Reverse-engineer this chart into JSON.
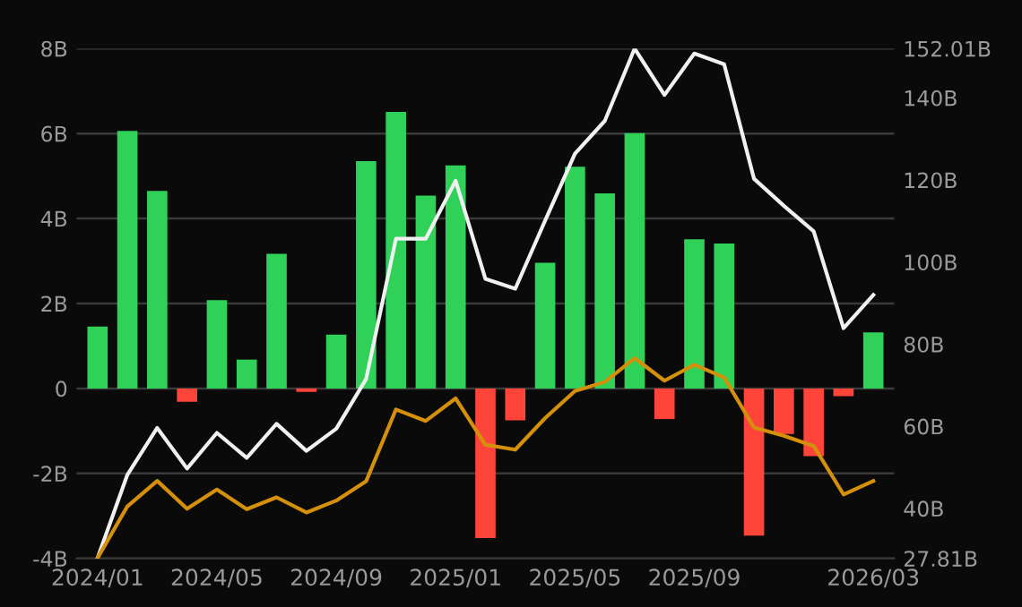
{
  "chart_data": {
    "type": "bar",
    "categories": [
      "2024/01",
      null,
      null,
      null,
      "2024/05",
      null,
      null,
      null,
      "2024/09",
      null,
      null,
      null,
      "2025/01",
      null,
      null,
      null,
      "2025/05",
      null,
      null,
      null,
      "2025/09",
      null,
      null,
      null,
      null,
      null,
      "2026/03"
    ],
    "series": [
      {
        "colors": [
          "#30d158",
          "#30d158",
          "#30d158",
          "#ff453a",
          "#30d158",
          "#30d158",
          "#30d158",
          "#ff453a",
          "#30d158",
          "#30d158",
          "#30d158",
          "#30d158",
          "#30d158",
          "#ff453a",
          "#ff453a",
          "#30d158",
          "#30d158",
          "#30d158",
          "#30d158",
          "#ff453a",
          "#30d158",
          "#30d158",
          "#ff453a",
          "#ff453a",
          "#ff453a",
          "#ff453a",
          "#30d158"
        ],
        "values": [
          1.46,
          6.06,
          4.65,
          -0.31,
          2.08,
          0.68,
          3.17,
          -0.08,
          1.27,
          5.35,
          6.51,
          4.54,
          5.25,
          -3.52,
          -0.75,
          2.96,
          5.22,
          4.59,
          6.01,
          -0.72,
          3.51,
          3.41,
          -3.46,
          -1.07,
          -1.59,
          -0.18,
          1.32
        ]
      },
      {
        "type": "line",
        "axis": "y2",
        "color": "#f0f0f0",
        "values": [
          27.9,
          48.2,
          59.6,
          49.7,
          58.4,
          52.3,
          60.6,
          54.0,
          59.4,
          71.5,
          105.7,
          105.7,
          119.8,
          95.9,
          93.5,
          110.1,
          126.4,
          134.4,
          152.0,
          140.7,
          150.8,
          148.2,
          120.3,
          113.7,
          107.5,
          83.9,
          92.0
        ]
      },
      {
        "type": "line",
        "axis": "y2",
        "color": "#d4900a",
        "values": [
          27.9,
          40.5,
          46.7,
          39.9,
          44.6,
          39.8,
          42.7,
          39.0,
          41.9,
          46.6,
          64.1,
          61.3,
          66.8,
          55.5,
          54.3,
          62.0,
          68.6,
          70.8,
          76.6,
          71.1,
          75.0,
          71.9,
          59.7,
          57.7,
          55.2,
          43.4,
          46.7
        ]
      }
    ],
    "ylim": [
      -4,
      8
    ],
    "yticks": [
      {
        "value": -4,
        "label": "-4B"
      },
      {
        "value": -2,
        "label": "-2B"
      },
      {
        "value": 0,
        "label": "0"
      },
      {
        "value": 2,
        "label": "2B"
      },
      {
        "value": 4,
        "label": "4B"
      },
      {
        "value": 6,
        "label": "6B"
      },
      {
        "value": 8,
        "label": "8B"
      }
    ],
    "y2lim": [
      27.81,
      152.01
    ],
    "y2ticks": [
      {
        "value": 27.81,
        "label": "27.81B"
      },
      {
        "value": 40,
        "label": "40B"
      },
      {
        "value": 60,
        "label": "60B"
      },
      {
        "value": 80,
        "label": "80B"
      },
      {
        "value": 100,
        "label": "100B"
      },
      {
        "value": 120,
        "label": "120B"
      },
      {
        "value": 140,
        "label": "140B"
      },
      {
        "value": 152.01,
        "label": "152.01B"
      }
    ],
    "grid": "y",
    "legend": false,
    "marker": "none",
    "line_style": "solid"
  }
}
